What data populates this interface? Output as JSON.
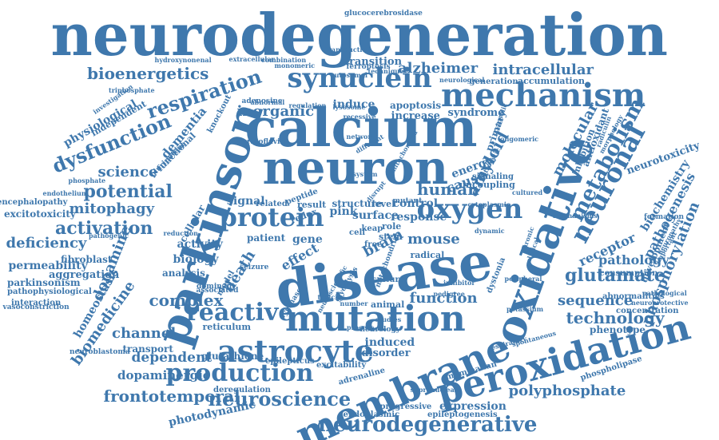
{
  "colors": {
    "word": "#3f78ad",
    "background": "#ffffff"
  },
  "words": [
    "neurodegeneration",
    "calcium",
    "neuron",
    "disease",
    "parkinson",
    "oxidative",
    "membrane",
    "mutation",
    "peroxidation",
    "astrocyte",
    "mechanism",
    "synuclein",
    "protein",
    "oxygen",
    "production",
    "neuronal",
    "neurodegenerative",
    "respiration",
    "reactive",
    "metabolism",
    "glutamate",
    "dysfunction",
    "bioenergetics",
    "alzheimer",
    "intracellular",
    "inorganic",
    "potential",
    "activation",
    "neuroscience",
    "polyphosphate",
    "frontotemporal",
    "human",
    "amyloid",
    "complex",
    "function",
    "mouse",
    "brain",
    "technology",
    "sequence",
    "channel",
    "dopamine",
    "biomedicine",
    "death",
    "mitophagy",
    "science",
    "deficiency",
    "permeability",
    "parkinsonism",
    "excitotoxicity",
    "phosphorylation",
    "pathogenesis",
    "receptor",
    "biochemistry",
    "pathology",
    "molecular",
    "dependent",
    "dopaminergic",
    "transport",
    "physiological",
    "dementia",
    "induced",
    "disorder",
    "expression",
    "endoplasmic",
    "epileptogenesis",
    "photodynamic",
    "progressive",
    "glucocerebrosidase",
    "activity",
    "biology",
    "analysis",
    "cellular",
    "fibroblast",
    "aggregation",
    "pathophysiological",
    "homeostasis",
    "apoptosis",
    "increase",
    "syndrome",
    "transition",
    "accumulation",
    "generation",
    "antioxidant",
    "inhibition",
    "neurotoxicity",
    "phospholipase",
    "phenotype",
    "development",
    "glutathione",
    "reticulum",
    "epilepticus",
    "excitability",
    "encephalopathy",
    "interaction",
    "vasoconstriction",
    "neuroblastoma",
    "control",
    "level",
    "cause",
    "energy",
    "gene",
    "effect",
    "radical",
    "patient",
    "pink",
    "signal",
    "related",
    "result",
    "response",
    "uncoupling",
    "signaling",
    "culture",
    "animal",
    "deregulation",
    "adrenaline",
    "mammalian",
    "consumption",
    "concentration",
    "abnormalities",
    "independent",
    "functional",
    "pluripotent",
    "knockout",
    "adenosine",
    "riboflavin",
    "ferroptosis",
    "autosomal",
    "extracellular",
    "transduction",
    "hydroxynonenal",
    "combination",
    "primary",
    "cytosolic",
    "oligomeric",
    "morphology",
    "radiculin",
    "formation",
    "dystonia",
    "pathological",
    "neuroprotective",
    "important",
    "seizure",
    "peptide",
    "stem",
    "role",
    "surface",
    "structure",
    "synthase",
    "supranuclear",
    "neurology",
    "dominant",
    "associated",
    "model",
    "induce",
    "abnormal",
    "monomeric",
    "technique",
    "neurological",
    "reduction",
    "pathogenic",
    "endothelium",
    "phosphate",
    "triphosphate",
    "investigation",
    "regulation",
    "lysosome",
    "process",
    "studies",
    "inhibitor",
    "pedigree",
    "number",
    "system",
    "mutant",
    "disrupt",
    "redox",
    "keap",
    "free",
    "cell",
    "mitochondrial",
    "network",
    "different",
    "recessive",
    "spontaneous",
    "respiratory",
    "potassium",
    "chronic",
    "mechanisms",
    "neuropathy",
    "clinical",
    "cultured",
    "peripheral",
    "dynamic",
    "glycolysis",
    "neuroscientific",
    "toxicity",
    "astrocytic",
    "cytoplasmic",
    "mitochondria"
  ]
}
